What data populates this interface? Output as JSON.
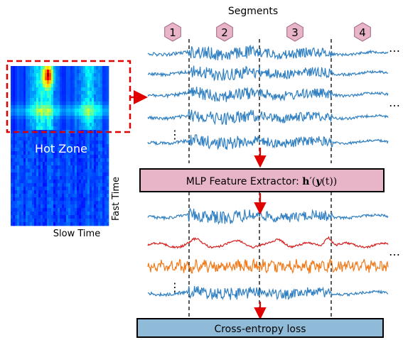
{
  "heatmap": {
    "hot_zone_label": "Hot Zone",
    "x_axis_label": "Slow Time",
    "y_axis_label": "Fast Time"
  },
  "segments": {
    "title": "Segments",
    "labels": [
      "1",
      "2",
      "3",
      "4"
    ]
  },
  "feature_extractor": {
    "prefix": "MLP Feature Extractor: ",
    "formula_h": "h",
    "formula_rest": "′(",
    "formula_y": "y",
    "formula_tail": "(t))"
  },
  "loss_box": {
    "label": "Cross-entropy loss"
  },
  "ellipsis": {
    "dots": "…",
    "vdots": "⋮"
  },
  "colors": {
    "signal_blue": "#2f7fc1",
    "signal_red": "#d62020",
    "signal_orange": "#f07a1a",
    "arrow_red": "#e00000",
    "extractor_fill": "#e8b4c8",
    "loss_fill": "#8fbbd9",
    "hex_fill": "#e8b4c8"
  }
}
